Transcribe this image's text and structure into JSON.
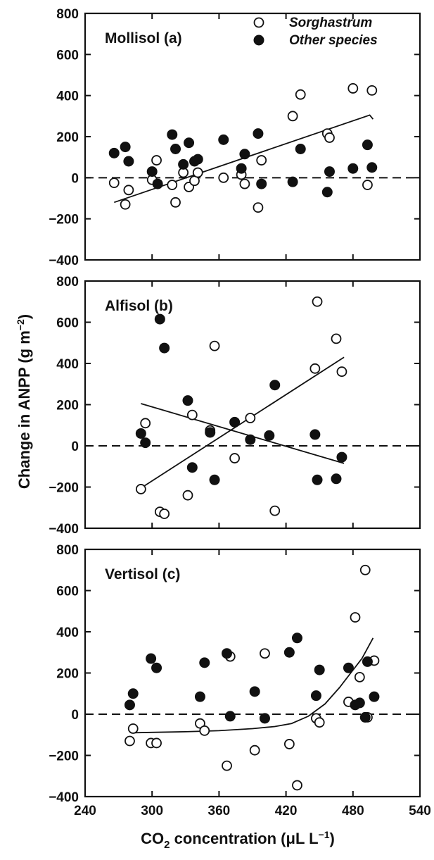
{
  "legend": {
    "items": [
      {
        "label": "Sorghastrum",
        "marker": "open-circle"
      },
      {
        "label": "Other species",
        "marker": "filled-circle"
      }
    ]
  },
  "axes": {
    "y_title_main": "Change in ANPP (g m",
    "y_title_sup": "−2",
    "y_title_end": ")",
    "x_title_prefix": "CO",
    "x_title_sub": "2",
    "x_title_middle": " concentration (μL L",
    "x_title_sup": "−1",
    "x_title_end": ")"
  },
  "chart_data": [
    {
      "type": "scatter",
      "panel_label": "Mollisol (a)",
      "xlim": [
        240,
        540
      ],
      "ylim": [
        -400,
        800
      ],
      "x_ticks": [
        240,
        300,
        360,
        420,
        480,
        540
      ],
      "y_ticks": [
        -400,
        -200,
        0,
        200,
        400,
        600,
        800
      ],
      "y_tick_labels": [
        "−400",
        "−200",
        "0",
        "200",
        "400",
        "600",
        "800"
      ],
      "reference_line": {
        "y": 0,
        "style": "dashed"
      },
      "grid": false,
      "legend_position": "top-right",
      "series": [
        {
          "name": "Sorghastrum",
          "marker": "open",
          "points": [
            [
              266,
              -25
            ],
            [
              276,
              -130
            ],
            [
              279,
              -60
            ],
            [
              304,
              85
            ],
            [
              300,
              -10
            ],
            [
              318,
              -35
            ],
            [
              321,
              -120
            ],
            [
              328,
              25
            ],
            [
              333,
              -45
            ],
            [
              338,
              -15
            ],
            [
              341,
              25
            ],
            [
              364,
              0
            ],
            [
              380,
              15
            ],
            [
              383,
              -30
            ],
            [
              395,
              -145
            ],
            [
              398,
              85
            ],
            [
              426,
              300
            ],
            [
              433,
              405
            ],
            [
              457,
              215
            ],
            [
              459,
              195
            ],
            [
              480,
              435
            ],
            [
              493,
              -35
            ],
            [
              497,
              425
            ]
          ]
        },
        {
          "name": "Other species",
          "marker": "filled",
          "points": [
            [
              266,
              120
            ],
            [
              276,
              150
            ],
            [
              279,
              80
            ],
            [
              300,
              30
            ],
            [
              305,
              -30
            ],
            [
              318,
              210
            ],
            [
              321,
              140
            ],
            [
              328,
              65
            ],
            [
              333,
              170
            ],
            [
              338,
              80
            ],
            [
              341,
              90
            ],
            [
              364,
              185
            ],
            [
              380,
              45
            ],
            [
              383,
              115
            ],
            [
              395,
              215
            ],
            [
              398,
              -30
            ],
            [
              426,
              -20
            ],
            [
              433,
              140
            ],
            [
              457,
              -70
            ],
            [
              459,
              30
            ],
            [
              480,
              45
            ],
            [
              493,
              160
            ],
            [
              497,
              50
            ]
          ]
        }
      ],
      "fit_lines": [
        {
          "series": "Sorghastrum",
          "points": [
            [
              266,
              -120
            ],
            [
              495,
              305
            ],
            [
              498,
              285
            ]
          ]
        }
      ]
    },
    {
      "type": "scatter",
      "panel_label": "Alfisol (b)",
      "xlim": [
        240,
        540
      ],
      "ylim": [
        -400,
        800
      ],
      "x_ticks": [
        240,
        300,
        360,
        420,
        480,
        540
      ],
      "y_ticks": [
        -400,
        -200,
        0,
        200,
        400,
        600,
        800
      ],
      "y_tick_labels": [
        "−400",
        "−200",
        "0",
        "200",
        "400",
        "600",
        "800"
      ],
      "reference_line": {
        "y": 0,
        "style": "dashed"
      },
      "grid": false,
      "series": [
        {
          "name": "Sorghastrum",
          "marker": "open",
          "points": [
            [
              290,
              -210
            ],
            [
              294,
              110
            ],
            [
              307,
              -320
            ],
            [
              311,
              -330
            ],
            [
              332,
              -240
            ],
            [
              336,
              150
            ],
            [
              352,
              75
            ],
            [
              356,
              485
            ],
            [
              374,
              -60
            ],
            [
              388,
              135
            ],
            [
              410,
              -315
            ],
            [
              446,
              375
            ],
            [
              448,
              700
            ],
            [
              465,
              520
            ],
            [
              470,
              360
            ]
          ]
        },
        {
          "name": "Other species",
          "marker": "filled",
          "points": [
            [
              290,
              60
            ],
            [
              294,
              15
            ],
            [
              307,
              615
            ],
            [
              311,
              475
            ],
            [
              332,
              220
            ],
            [
              336,
              -105
            ],
            [
              352,
              65
            ],
            [
              356,
              -165
            ],
            [
              374,
              115
            ],
            [
              388,
              30
            ],
            [
              405,
              50
            ],
            [
              410,
              295
            ],
            [
              446,
              55
            ],
            [
              448,
              -165
            ],
            [
              465,
              -160
            ],
            [
              470,
              -55
            ]
          ]
        }
      ],
      "fit_lines": [
        {
          "series": "Sorghastrum",
          "points": [
            [
              290,
              -205
            ],
            [
              472,
              430
            ]
          ]
        },
        {
          "series": "Other species",
          "points": [
            [
              290,
              205
            ],
            [
              472,
              -85
            ]
          ]
        }
      ]
    },
    {
      "type": "scatter",
      "panel_label": "Vertisol (c)",
      "xlim": [
        240,
        540
      ],
      "ylim": [
        -400,
        800
      ],
      "x_ticks": [
        240,
        300,
        360,
        420,
        480,
        540
      ],
      "x_tick_labels": [
        "240",
        "300",
        "360",
        "420",
        "480",
        "540"
      ],
      "y_ticks": [
        -400,
        -200,
        0,
        200,
        400,
        600,
        800
      ],
      "y_tick_labels": [
        "−400",
        "−200",
        "0",
        "200",
        "400",
        "600",
        "800"
      ],
      "reference_line": {
        "y": 0,
        "style": "dashed"
      },
      "grid": false,
      "series": [
        {
          "name": "Sorghastrum",
          "marker": "open",
          "points": [
            [
              280,
              -130
            ],
            [
              283,
              -70
            ],
            [
              299,
              -140
            ],
            [
              304,
              -140
            ],
            [
              343,
              -45
            ],
            [
              347,
              -80
            ],
            [
              367,
              -250
            ],
            [
              370,
              280
            ],
            [
              392,
              -175
            ],
            [
              401,
              295
            ],
            [
              423,
              -145
            ],
            [
              430,
              -345
            ],
            [
              447,
              -20
            ],
            [
              450,
              -40
            ],
            [
              476,
              60
            ],
            [
              482,
              470
            ],
            [
              486,
              180
            ],
            [
              491,
              700
            ],
            [
              493,
              -15
            ],
            [
              499,
              260
            ]
          ]
        },
        {
          "name": "Other species",
          "marker": "filled",
          "points": [
            [
              280,
              45
            ],
            [
              283,
              100
            ],
            [
              299,
              270
            ],
            [
              304,
              225
            ],
            [
              343,
              85
            ],
            [
              347,
              250
            ],
            [
              367,
              295
            ],
            [
              370,
              -10
            ],
            [
              392,
              110
            ],
            [
              401,
              -20
            ],
            [
              423,
              300
            ],
            [
              430,
              370
            ],
            [
              447,
              90
            ],
            [
              450,
              215
            ],
            [
              476,
              225
            ],
            [
              482,
              45
            ],
            [
              486,
              55
            ],
            [
              491,
              -15
            ],
            [
              493,
              255
            ],
            [
              499,
              85
            ]
          ]
        }
      ],
      "fit_lines": [
        {
          "series": "Sorghastrum",
          "points": [
            [
              283,
              -90
            ],
            [
              330,
              -85
            ],
            [
              360,
              -80
            ],
            [
              390,
              -70
            ],
            [
              410,
              -60
            ],
            [
              425,
              -45
            ],
            [
              440,
              -10
            ],
            [
              455,
              50
            ],
            [
              468,
              130
            ],
            [
              478,
              200
            ],
            [
              488,
              270
            ],
            [
              498,
              370
            ]
          ]
        }
      ]
    }
  ]
}
